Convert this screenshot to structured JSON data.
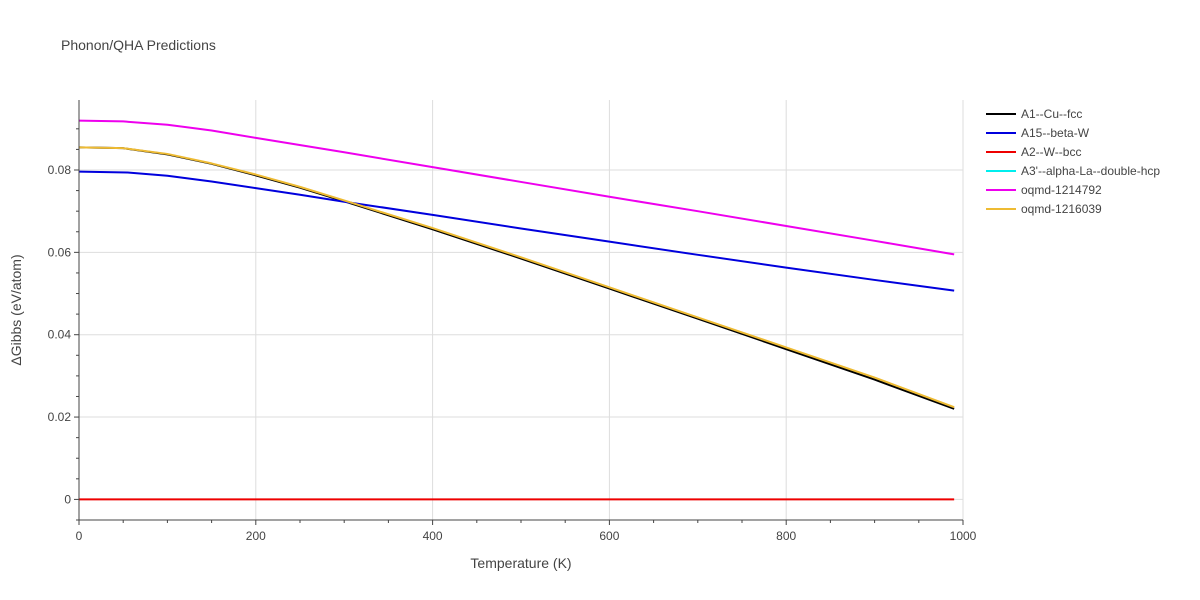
{
  "chart_data": {
    "type": "line",
    "title": "Phonon/QHA Predictions",
    "xlabel": "Temperature (K)",
    "ylabel": "ΔGibbs (eV/atom)",
    "xlim": [
      0,
      1000
    ],
    "ylim": [
      -0.005,
      0.097
    ],
    "x_ticks": [
      {
        "value": 0,
        "label": "0"
      },
      {
        "value": 200,
        "label": "200"
      },
      {
        "value": 400,
        "label": "400"
      },
      {
        "value": 600,
        "label": "600"
      },
      {
        "value": 800,
        "label": "800"
      },
      {
        "value": 1000,
        "label": "1000"
      }
    ],
    "y_ticks": [
      {
        "value": 0,
        "label": "0"
      },
      {
        "value": 0.02,
        "label": "0.02"
      },
      {
        "value": 0.04,
        "label": "0.04"
      },
      {
        "value": 0.06,
        "label": "0.06"
      },
      {
        "value": 0.08,
        "label": "0.08"
      }
    ],
    "grid": true,
    "legend_position": "right",
    "series": [
      {
        "name": "A1--Cu--fcc",
        "color": "#000000",
        "x": [
          0,
          50,
          100,
          150,
          200,
          250,
          300,
          400,
          500,
          600,
          700,
          800,
          900,
          990
        ],
        "y": [
          0.0855,
          0.0853,
          0.0838,
          0.0815,
          0.0787,
          0.0757,
          0.0724,
          0.0656,
          0.0585,
          0.0512,
          0.0439,
          0.0365,
          0.0291,
          0.022
        ]
      },
      {
        "name": "A15--beta-W",
        "color": "#0000dd",
        "x": [
          0,
          55,
          100,
          150,
          200,
          250,
          300,
          400,
          500,
          600,
          700,
          800,
          900,
          990
        ],
        "y": [
          0.0796,
          0.0794,
          0.0786,
          0.0772,
          0.0756,
          0.074,
          0.0723,
          0.0691,
          0.0658,
          0.0626,
          0.0594,
          0.0563,
          0.0533,
          0.0507
        ]
      },
      {
        "name": "A2--W--bcc",
        "color": "#ee0000",
        "x": [
          0,
          990
        ],
        "y": [
          0,
          0
        ]
      },
      {
        "name": "A3'--alpha-La--double-hcp",
        "color": "#00eeee",
        "x": [],
        "y": []
      },
      {
        "name": "oqmd-1214792",
        "color": "#ee00ee",
        "x": [
          0,
          50,
          100,
          150,
          200,
          300,
          400,
          500,
          600,
          700,
          800,
          900,
          990
        ],
        "y": [
          0.092,
          0.0918,
          0.091,
          0.0896,
          0.0878,
          0.0843,
          0.0807,
          0.0771,
          0.0735,
          0.07,
          0.0664,
          0.0628,
          0.0595
        ]
      },
      {
        "name": "oqmd-1216039",
        "color": "#eebb33",
        "x": [
          0,
          50,
          100,
          150,
          200,
          250,
          300,
          400,
          500,
          600,
          700,
          800,
          900,
          990
        ],
        "y": [
          0.0855,
          0.0853,
          0.0839,
          0.0816,
          0.0789,
          0.0759,
          0.0726,
          0.0659,
          0.0588,
          0.0515,
          0.0442,
          0.0369,
          0.0296,
          0.0224
        ]
      }
    ]
  }
}
